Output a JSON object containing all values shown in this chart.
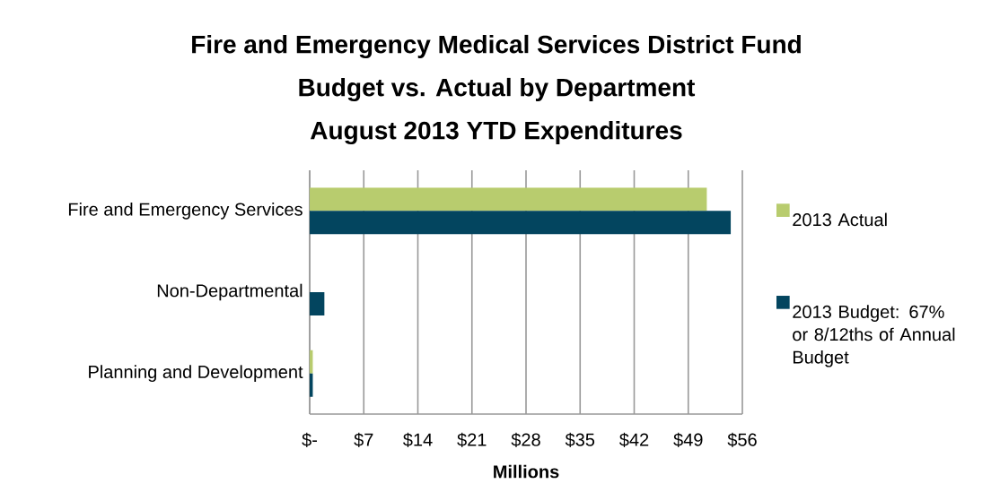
{
  "chart_data": {
    "type": "bar",
    "orientation": "horizontal",
    "title": "Fire and Emergency Medical Services District Fund\nBudget vs. Actual by Department\nAugust 2013 YTD Expenditures",
    "xlabel": "Millions",
    "categories": [
      "Fire and Emergency Services",
      "Non-Departmental",
      "Planning and Development"
    ],
    "series": [
      {
        "name": "2013 Actual",
        "color": "#b8cc6e",
        "values": [
          51.4,
          0,
          0.4
        ]
      },
      {
        "name": "2013 Budget: 67% or 8/12ths of Annual Budget",
        "color": "#03455f",
        "values": [
          54.5,
          1.9,
          0.4
        ]
      }
    ],
    "xlim": [
      0,
      56
    ],
    "xticks": [
      {
        "value": 0,
        "label": "$-"
      },
      {
        "value": 7,
        "label": "$7"
      },
      {
        "value": 14,
        "label": "$14"
      },
      {
        "value": 21,
        "label": "$21"
      },
      {
        "value": 28,
        "label": "$28"
      },
      {
        "value": 35,
        "label": "$35"
      },
      {
        "value": 42,
        "label": "$42"
      },
      {
        "value": 49,
        "label": "$49"
      },
      {
        "value": 56,
        "label": "$56"
      }
    ],
    "grid": "x",
    "legend": "right"
  }
}
